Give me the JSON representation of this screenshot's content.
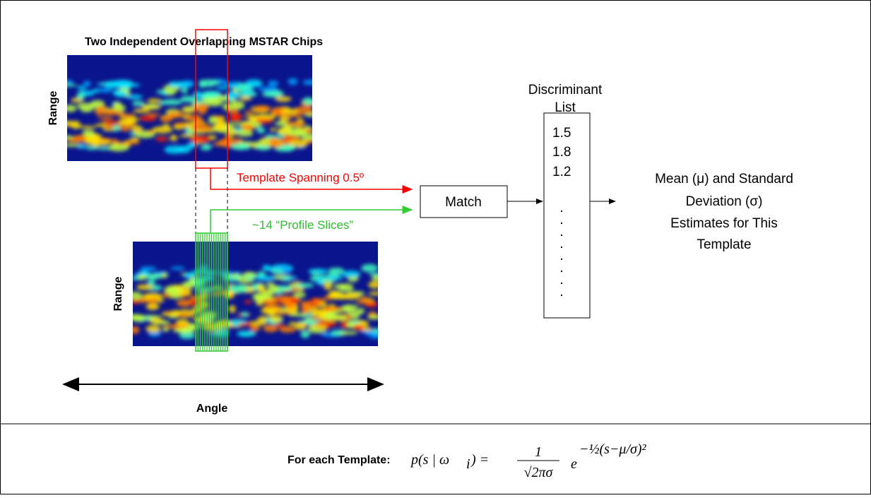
{
  "diagram": {
    "chips_title": "Two Independent Overlapping MSTAR Chips",
    "range_top": "Range",
    "range_bottom": "Range",
    "template_label": "Template Spanning 0.5º",
    "slices_label": "~14 “Profile Slices”",
    "match": "Match",
    "list_title": [
      "Discriminant",
      "List"
    ],
    "list_values": [
      "1.5",
      "1.8",
      "1.2"
    ],
    "list_dots": ".\n.\n.\n.\n.\n.\n.\n.",
    "output": [
      "Mean (μ) and Standard",
      "Deviation (σ)",
      "Estimates for This",
      "Template"
    ],
    "angle": "Angle"
  },
  "footer": {
    "label": "For each Template:",
    "lhs": "p(s  |  ω",
    "lhs_sub": "i",
    "lhs_close": ")  =",
    "numerator": "1",
    "denominator": "√2πσ",
    "exp_base": "e",
    "exponent": "−½(s−μ/σ)²"
  }
}
